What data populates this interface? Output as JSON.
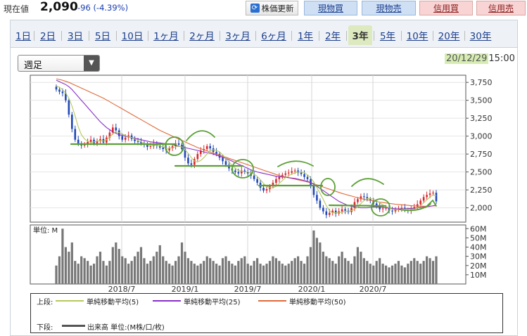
{
  "header": {
    "price_label": "現在値",
    "price": "2,090",
    "change": "-96 (-4.39%)",
    "update_label": "株価更新",
    "buy_label": "現物買",
    "sell_label": "現物売",
    "margin_buy_label": "信用買",
    "margin_sell_label": "信用売"
  },
  "tabs": [
    {
      "label": "1日"
    },
    {
      "label": "2日"
    },
    {
      "label": "3日"
    },
    {
      "label": "5日"
    },
    {
      "label": "10日"
    },
    {
      "label": "1ヶ月"
    },
    {
      "label": "2ヶ月"
    },
    {
      "label": "3ヶ月"
    },
    {
      "label": "6ヶ月"
    },
    {
      "label": "1年"
    },
    {
      "label": "2年"
    },
    {
      "label": "3年",
      "active": true
    },
    {
      "label": "5年"
    },
    {
      "label": "10年"
    },
    {
      "label": "20年"
    },
    {
      "label": "30年"
    }
  ],
  "period_select": "週足",
  "timestamp": {
    "date": "20/12/29",
    "time": "15:00"
  },
  "legend": {
    "upper_label": "上段:",
    "ma5": "単純移動平均(5)",
    "ma25": "単純移動平均(25)",
    "ma50": "単純移動平均(50)",
    "lower_label": "下段:",
    "volume": "出来高 単位:(M株/口/枚)"
  },
  "colors": {
    "up": "#d9282f",
    "down": "#2148b8",
    "ma5": "#b5c95a",
    "ma25": "#8a2fc9",
    "ma50": "#e06a3a",
    "volume": "#777777",
    "annotation": "#5aa033"
  },
  "chart_data": {
    "type": "candlestick",
    "title": "",
    "x_tick_labels": [
      "2018/7",
      "2019/1",
      "2019/7",
      "2020/1",
      "2020/7"
    ],
    "price_axis": {
      "ticks": [
        "3,750",
        "3,500",
        "3,250",
        "3,000",
        "2,750",
        "2,500",
        "2,250",
        "2,000"
      ],
      "ylim": [
        1800,
        3850
      ]
    },
    "volume_axis": {
      "unit_label": "単位: M",
      "ticks": [
        "60M",
        "50M",
        "40M",
        "30M",
        "20M",
        "10M"
      ],
      "ylim": [
        0,
        64
      ]
    },
    "close": [
      3650,
      3620,
      3600,
      3500,
      3300,
      3100,
      2950,
      2900,
      2870,
      2880,
      2920,
      2950,
      2900,
      2930,
      2960,
      2910,
      2980,
      3050,
      3120,
      3080,
      3000,
      2950,
      2980,
      3010,
      2960,
      2930,
      2920,
      2900,
      2880,
      2850,
      2860,
      2900,
      2870,
      2840,
      2820,
      2800,
      2830,
      2860,
      2900,
      2880,
      2820,
      2700,
      2620,
      2600,
      2680,
      2750,
      2800,
      2820,
      2860,
      2830,
      2780,
      2750,
      2700,
      2650,
      2600,
      2550,
      2520,
      2500,
      2480,
      2520,
      2500,
      2480,
      2450,
      2400,
      2350,
      2280,
      2240,
      2260,
      2300,
      2350,
      2400,
      2430,
      2460,
      2480,
      2490,
      2510,
      2520,
      2490,
      2470,
      2430,
      2400,
      2300,
      2180,
      2100,
      2000,
      1950,
      1900,
      1930,
      1960,
      1920,
      1950,
      1980,
      1960,
      1940,
      2000,
      2080,
      2120,
      2160,
      2150,
      2120,
      2100,
      2060,
      2020,
      1980,
      1990,
      2000,
      1960,
      1950,
      1980,
      1990,
      2000,
      1970,
      1960,
      1990,
      2010,
      2050,
      2100,
      2150,
      2180,
      2200,
      2210,
      2090
    ],
    "ma5": [
      3700,
      3680,
      3650,
      3600,
      3530,
      3420,
      3280,
      3130,
      3020,
      2960,
      2930,
      2910,
      2920,
      2930,
      2940,
      2930,
      2950,
      2990,
      3030,
      3060,
      3050,
      3030,
      3010,
      2990,
      2980,
      2960,
      2940,
      2920,
      2900,
      2880,
      2870,
      2870,
      2870,
      2860,
      2850,
      2830,
      2830,
      2840,
      2850,
      2860,
      2850,
      2810,
      2760,
      2700,
      2650,
      2640,
      2660,
      2700,
      2750,
      2800,
      2810,
      2800,
      2780,
      2740,
      2690,
      2640,
      2590,
      2550,
      2520,
      2510,
      2500,
      2500,
      2490,
      2470,
      2440,
      2390,
      2340,
      2300,
      2280,
      2280,
      2300,
      2340,
      2380,
      2420,
      2450,
      2470,
      2490,
      2500,
      2500,
      2490,
      2460,
      2420,
      2360,
      2280,
      2200,
      2120,
      2030,
      1960,
      1930,
      1930,
      1930,
      1940,
      1950,
      1950,
      1960,
      1980,
      2010,
      2060,
      2100,
      2130,
      2130,
      2120,
      2100,
      2070,
      2040,
      2020,
      2000,
      1980,
      1970,
      1970,
      1980,
      1980,
      1980,
      1980,
      1980,
      2000,
      2030,
      2070,
      2110,
      2150,
      2180,
      2170
    ],
    "ma25": [
      3780,
      3760,
      3740,
      3720,
      3690,
      3650,
      3600,
      3550,
      3500,
      3450,
      3400,
      3350,
      3300,
      3250,
      3200,
      3160,
      3120,
      3090,
      3060,
      3040,
      3020,
      3010,
      3000,
      2990,
      2980,
      2970,
      2960,
      2950,
      2940,
      2930,
      2920,
      2915,
      2910,
      2905,
      2900,
      2895,
      2890,
      2880,
      2870,
      2860,
      2850,
      2840,
      2830,
      2820,
      2810,
      2800,
      2790,
      2780,
      2770,
      2760,
      2750,
      2735,
      2720,
      2705,
      2690,
      2670,
      2650,
      2630,
      2610,
      2590,
      2570,
      2550,
      2530,
      2515,
      2500,
      2490,
      2480,
      2470,
      2460,
      2450,
      2440,
      2435,
      2430,
      2425,
      2420,
      2415,
      2410,
      2400,
      2390,
      2380,
      2370,
      2350,
      2330,
      2300,
      2270,
      2240,
      2210,
      2180,
      2150,
      2120,
      2090,
      2070,
      2050,
      2030,
      2020,
      2010,
      2005,
      2000,
      2000,
      2000,
      2005,
      2010,
      2010,
      2010,
      2005,
      2000,
      1995,
      1990,
      1985,
      1985,
      1985,
      1985,
      1990,
      1990,
      1995,
      2000,
      2005,
      2010,
      2015,
      2020,
      2030,
      2040
    ],
    "ma50": [
      3800,
      3790,
      3780,
      3765,
      3750,
      3730,
      3710,
      3690,
      3670,
      3650,
      3630,
      3610,
      3590,
      3570,
      3550,
      3530,
      3505,
      3480,
      3455,
      3430,
      3405,
      3380,
      3355,
      3330,
      3305,
      3280,
      3255,
      3230,
      3205,
      3180,
      3155,
      3130,
      3105,
      3080,
      3060,
      3040,
      3020,
      3000,
      2980,
      2960,
      2940,
      2920,
      2900,
      2880,
      2860,
      2840,
      2825,
      2810,
      2795,
      2780,
      2765,
      2750,
      2735,
      2720,
      2705,
      2690,
      2675,
      2660,
      2645,
      2630,
      2615,
      2600,
      2585,
      2570,
      2555,
      2540,
      2525,
      2510,
      2495,
      2480,
      2465,
      2450,
      2440,
      2430,
      2420,
      2410,
      2400,
      2390,
      2380,
      2370,
      2360,
      2350,
      2335,
      2320,
      2305,
      2290,
      2275,
      2260,
      2245,
      2230,
      2215,
      2200,
      2188,
      2176,
      2164,
      2152,
      2140,
      2130,
      2120,
      2112,
      2104,
      2096,
      2088,
      2080,
      2074,
      2068,
      2062,
      2056,
      2050,
      2046,
      2042,
      2038,
      2034,
      2030,
      2028,
      2026,
      2024,
      2022,
      2022,
      2024,
      2026,
      2030
    ],
    "volume": [
      20,
      30,
      60,
      40,
      35,
      45,
      25,
      22,
      30,
      28,
      25,
      20,
      22,
      30,
      35,
      25,
      20,
      25,
      40,
      45,
      38,
      30,
      28,
      22,
      25,
      30,
      35,
      40,
      28,
      22,
      25,
      30,
      35,
      42,
      30,
      25,
      22,
      20,
      25,
      30,
      45,
      35,
      28,
      25,
      22,
      20,
      22,
      25,
      30,
      28,
      25,
      22,
      20,
      28,
      30,
      25,
      22,
      20,
      25,
      28,
      30,
      22,
      20,
      25,
      28,
      22,
      20,
      22,
      25,
      30,
      28,
      25,
      22,
      20,
      22,
      25,
      28,
      30,
      25,
      22,
      30,
      40,
      58,
      50,
      45,
      35,
      30,
      28,
      25,
      22,
      30,
      35,
      28,
      25,
      22,
      30,
      40,
      35,
      28,
      25,
      22,
      20,
      25,
      28,
      22,
      20,
      18,
      20,
      22,
      25,
      20,
      18,
      22,
      25,
      28,
      25,
      22,
      25,
      30,
      28,
      25,
      30
    ]
  }
}
